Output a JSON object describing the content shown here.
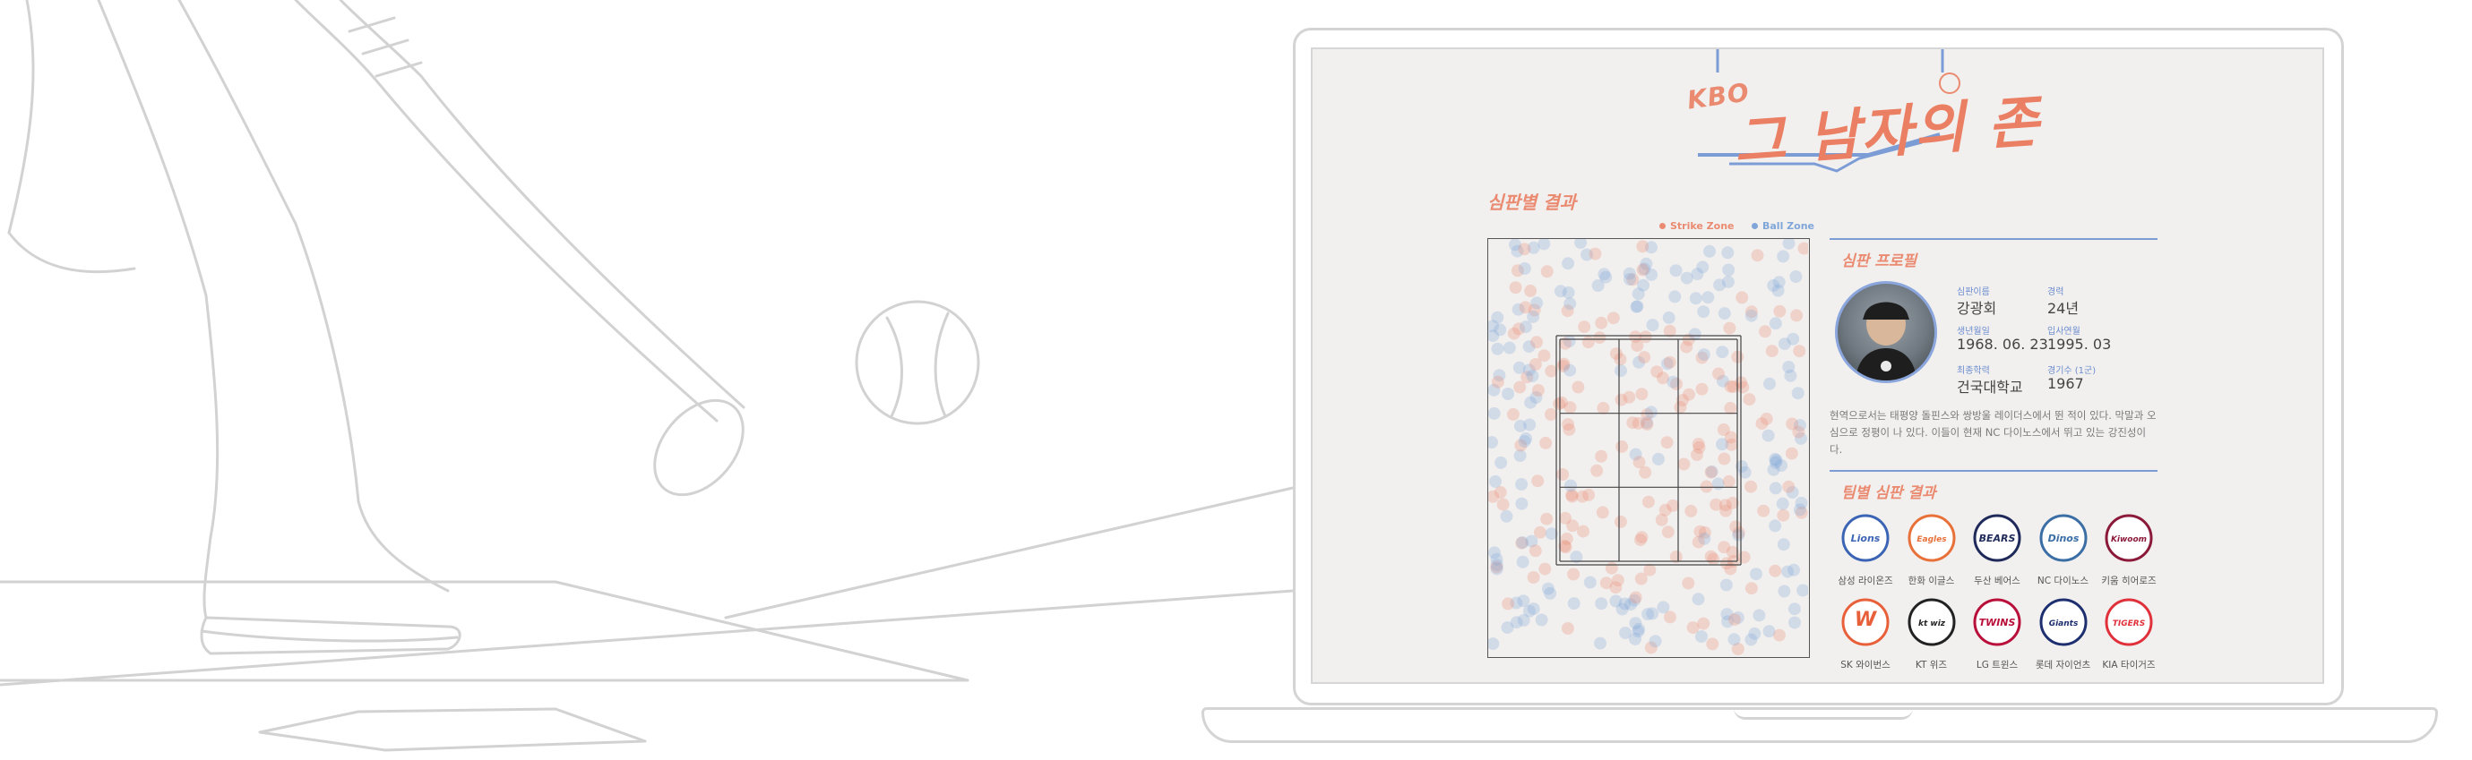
{
  "logo": {
    "kbo": "KBO",
    "title": "그 남자의 존"
  },
  "chart_section": {
    "title": "심판별 결과",
    "legend": [
      {
        "label": "Strike Zone",
        "color": "#ea8a70"
      },
      {
        "label": "Ball Zone",
        "color": "#7fa6d8"
      }
    ]
  },
  "profile": {
    "title": "심판 프로필",
    "fields": [
      {
        "label": "심판이름",
        "value": "강광회"
      },
      {
        "label": "경력",
        "value": "24년"
      },
      {
        "label": "생년월일",
        "value": "1968. 06. 23"
      },
      {
        "label": "입사연월",
        "value": "1995. 03"
      },
      {
        "label": "최종학력",
        "value": "건국대학교"
      },
      {
        "label": "경기수 (1군)",
        "value": "1967"
      }
    ],
    "bio": "현역으로서는 태평양 돌핀스와 쌍방울 레이더스에서 뛴 적이 있다. 막말과 오심으로 정평이 나 있다. 이들이 현재 NC 다이노스에서 뛰고 있는 강진성이다."
  },
  "teams_section": {
    "title": "팀별 심판 결과",
    "teams": [
      {
        "name": "삼성 라이온즈",
        "logo_text": "Lions",
        "color": "#3c64b4"
      },
      {
        "name": "한화 이글스",
        "logo_text": "Eagles",
        "color": "#e8713a"
      },
      {
        "name": "두산 베어스",
        "logo_text": "BEARS",
        "color": "#1f2a5a"
      },
      {
        "name": "NC 다이노스",
        "logo_text": "Dinos",
        "color": "#3a6ea5"
      },
      {
        "name": "키움 히어로즈",
        "logo_text": "Kiwoom",
        "color": "#8b1a3a"
      },
      {
        "name": "SK 와이번스",
        "logo_text": "W",
        "color": "#e8603a"
      },
      {
        "name": "KT 위즈",
        "logo_text": "kt wiz",
        "color": "#222222"
      },
      {
        "name": "LG 트윈스",
        "logo_text": "TWINS",
        "color": "#b8103a"
      },
      {
        "name": "롯데 자이언츠",
        "logo_text": "Giants",
        "color": "#1d2f6f"
      },
      {
        "name": "KIA 타이거즈",
        "logo_text": "TIGERS",
        "color": "#e0303a"
      }
    ]
  }
}
